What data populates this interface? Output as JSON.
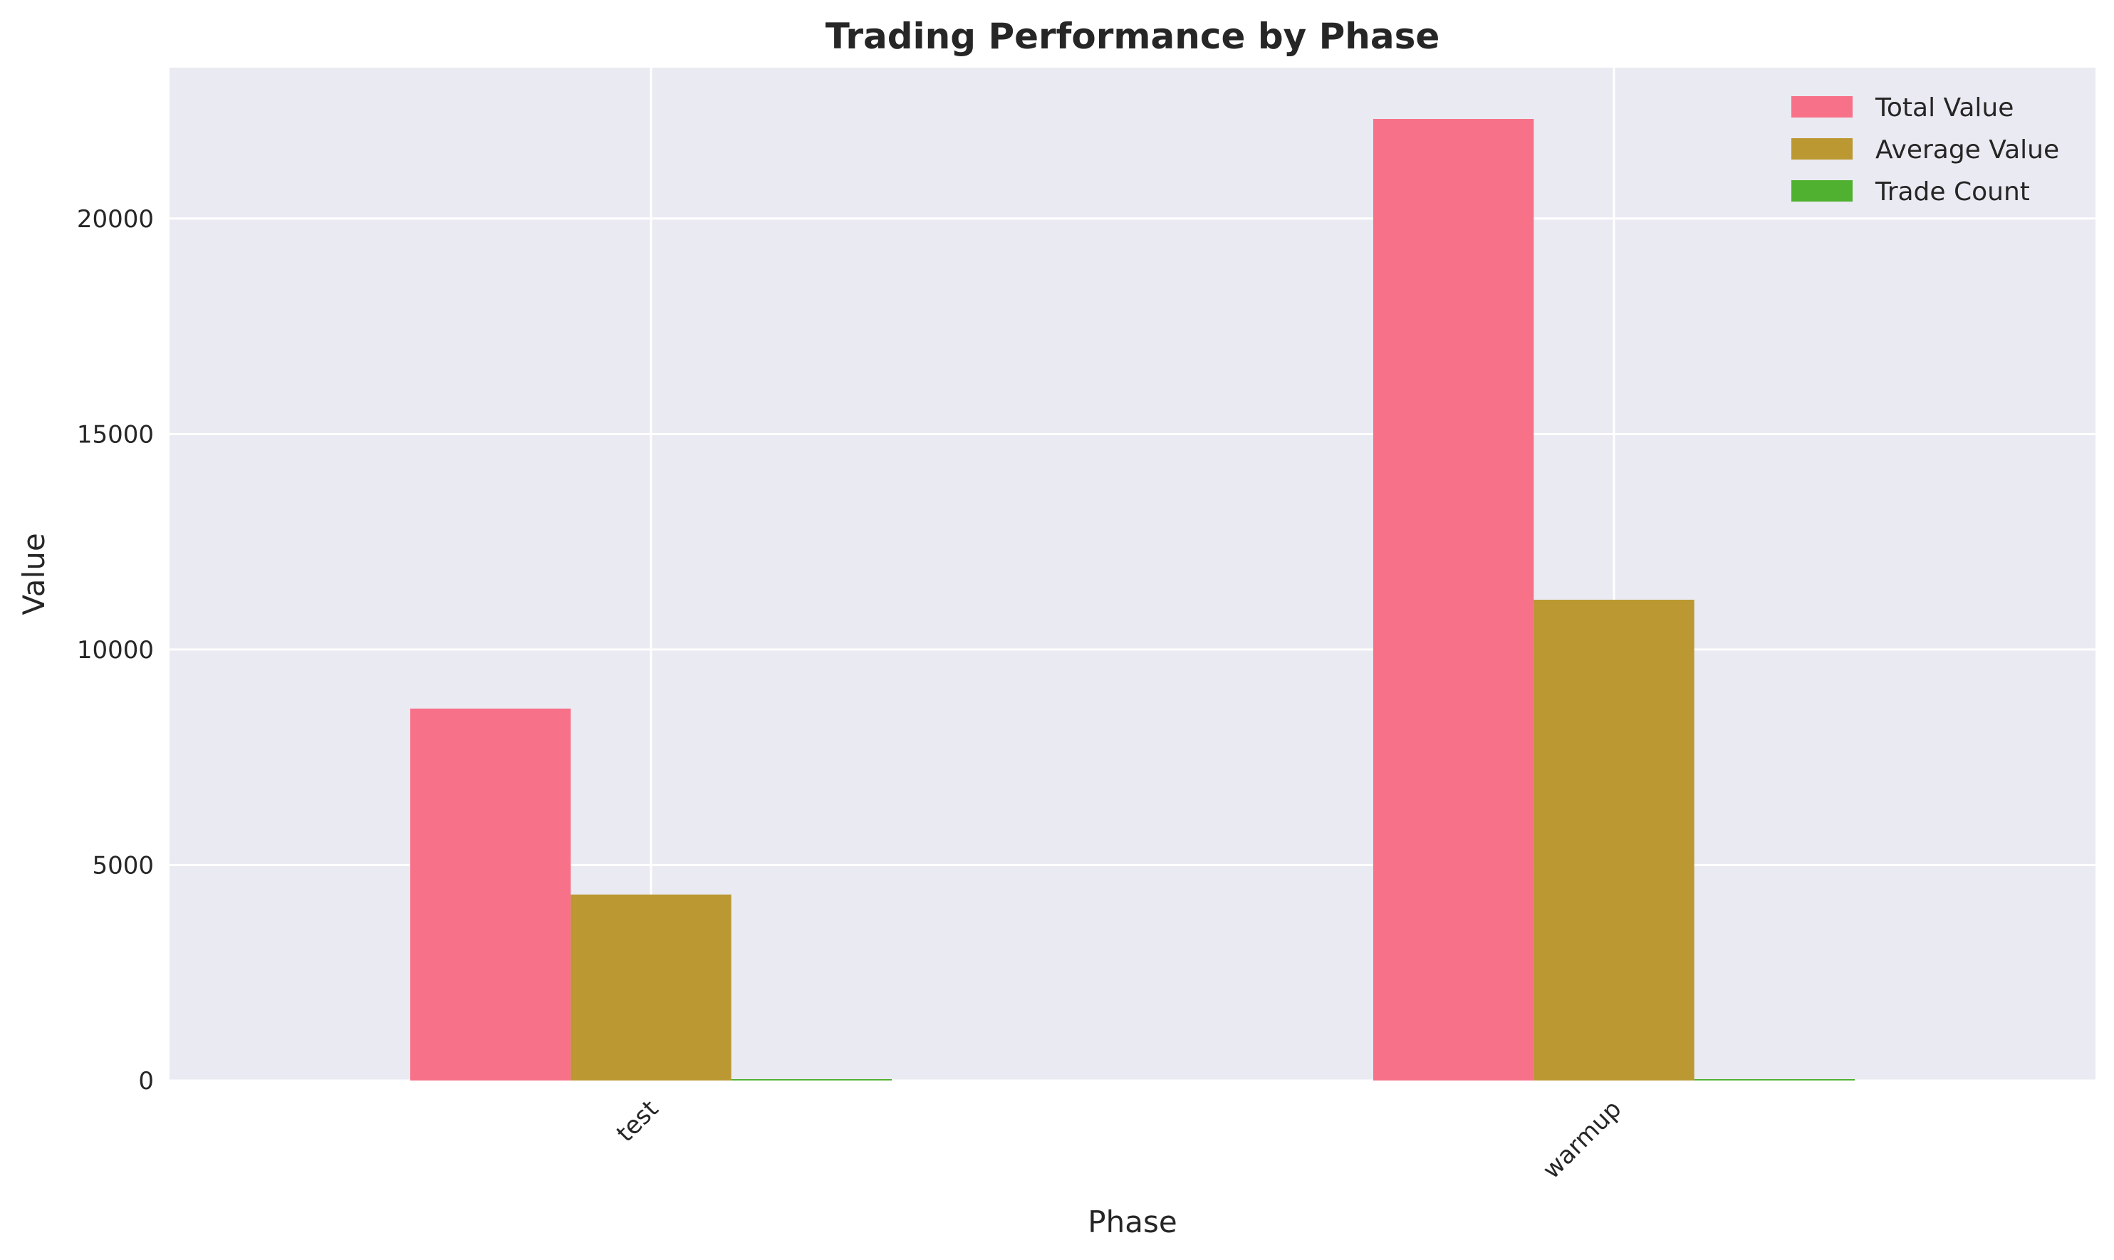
{
  "chart_data": {
    "type": "bar",
    "title": "Trading Performance by Phase",
    "xlabel": "Phase",
    "ylabel": "Value",
    "categories": [
      "test",
      "warmup"
    ],
    "series": [
      {
        "name": "Total Value",
        "values": [
          8630,
          22310
        ],
        "color": "#f77189"
      },
      {
        "name": "Average Value",
        "values": [
          4315,
          11155
        ],
        "color": "#bb9832"
      },
      {
        "name": "Trade Count",
        "values": [
          2,
          2
        ],
        "color": "#50b131"
      }
    ],
    "ylim": [
      0,
      23500
    ],
    "yticks": [
      0,
      5000,
      10000,
      15000,
      20000
    ],
    "grid": true,
    "legend_position": "top-right",
    "background": "#eaeaf2",
    "grid_color": "#ffffff"
  }
}
